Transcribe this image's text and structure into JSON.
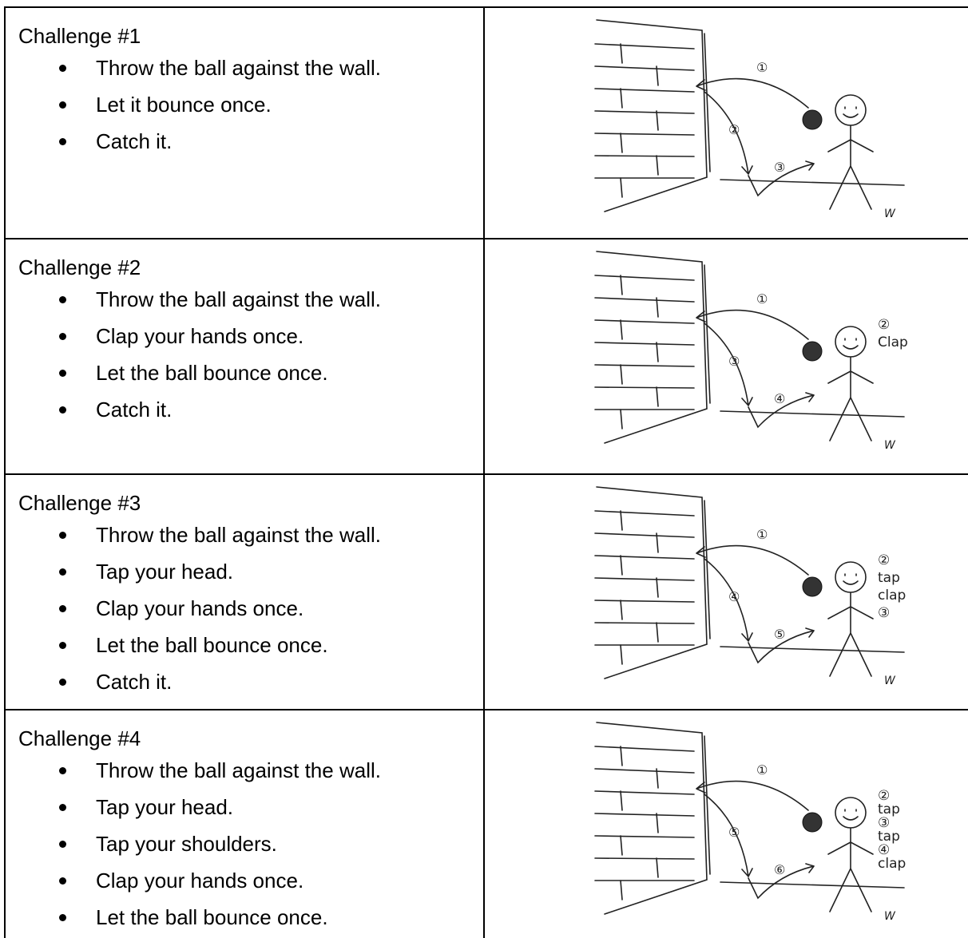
{
  "table": {
    "rows": [
      {
        "title": "Challenge #1",
        "bullets": [
          "Throw the ball against the wall.",
          "Let it bounce once.",
          "Catch it."
        ],
        "illustration": {
          "throw_label": "①",
          "fall_label": "②",
          "bounce_label": "③",
          "action_labels": [],
          "signature": "W"
        }
      },
      {
        "title": "Challenge #2",
        "bullets": [
          "Throw the ball against the wall.",
          "Clap your hands once.",
          "Let the ball bounce once.",
          "Catch it."
        ],
        "illustration": {
          "throw_label": "①",
          "fall_label": "③",
          "bounce_label": "④",
          "action_labels": [
            "②",
            "Clap"
          ],
          "signature": "W"
        }
      },
      {
        "title": "Challenge #3",
        "bullets": [
          "Throw the ball against the wall.",
          "Tap your head.",
          "Clap your hands once.",
          "Let the ball bounce once.",
          "Catch it."
        ],
        "illustration": {
          "throw_label": "①",
          "fall_label": "④",
          "bounce_label": "⑤",
          "action_labels": [
            "②",
            "tap",
            "clap",
            "③"
          ],
          "signature": "W"
        }
      },
      {
        "title": "Challenge #4",
        "bullets": [
          "Throw the ball against the wall.",
          "Tap your head.",
          "Tap your shoulders.",
          "Clap your hands once.",
          "Let the ball bounce once."
        ],
        "illustration": {
          "throw_label": "①",
          "fall_label": "⑤",
          "bounce_label": "⑥",
          "action_labels": [
            "②",
            "tap",
            "③",
            "tap",
            "④",
            "clap"
          ],
          "signature": "W"
        }
      }
    ]
  }
}
